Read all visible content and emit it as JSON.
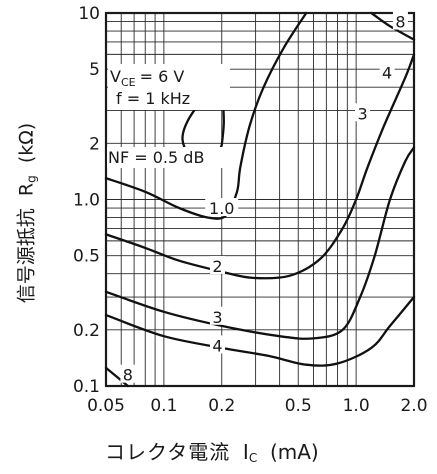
{
  "chart_data": {
    "type": "line",
    "title": "",
    "xlabel": {
      "text": "コレクタ電流",
      "symbol": "I",
      "sub": "C",
      "unit": "(mA)"
    },
    "ylabel": {
      "text": "信号源抵抗",
      "symbol": "R",
      "sub": "g",
      "unit": "(kΩ)"
    },
    "x_scale": "log",
    "y_scale": "log",
    "xlim": [
      0.05,
      2.0
    ],
    "ylim": [
      0.1,
      10
    ],
    "x_ticks": [
      {
        "value": 0.05,
        "label": "0.05"
      },
      {
        "value": 0.1,
        "label": "0.1"
      },
      {
        "value": 0.2,
        "label": "0.2"
      },
      {
        "value": 0.5,
        "label": "0.5"
      },
      {
        "value": 1.0,
        "label": "1.0"
      },
      {
        "value": 2.0,
        "label": "2.0"
      }
    ],
    "y_ticks": [
      {
        "value": 10,
        "label": "10"
      },
      {
        "value": 5,
        "label": "5"
      },
      {
        "value": 2,
        "label": "2"
      },
      {
        "value": 1.0,
        "label": "1.0"
      },
      {
        "value": 0.5,
        "label": "0.5"
      },
      {
        "value": 0.2,
        "label": "0.2"
      },
      {
        "value": 0.1,
        "label": "0.1"
      }
    ],
    "conditions": {
      "vce": {
        "symbol": "V",
        "sub": "CE",
        "value": "= 6 V"
      },
      "freq": "f = 1 kHz",
      "nf_label": "NF = 0.5 dB"
    },
    "grid": true,
    "series": [
      {
        "label": "",
        "closed": true,
        "points": [
          [
            0.2,
            1.95
          ],
          [
            0.185,
            1.7
          ],
          [
            0.16,
            1.62
          ],
          [
            0.135,
            1.75
          ],
          [
            0.125,
            2.1
          ],
          [
            0.132,
            2.6
          ],
          [
            0.155,
            3.3
          ],
          [
            0.18,
            3.6
          ],
          [
            0.2,
            3.4
          ],
          [
            0.205,
            2.6
          ],
          [
            0.2,
            1.95
          ]
        ]
      },
      {
        "label": "1.0",
        "label_at": [
          0.2,
          0.9
        ],
        "points": [
          [
            0.05,
            1.3
          ],
          [
            0.08,
            1.1
          ],
          [
            0.12,
            0.9
          ],
          [
            0.17,
            0.8
          ],
          [
            0.21,
            0.82
          ],
          [
            0.24,
            1.1
          ],
          [
            0.25,
            1.5
          ],
          [
            0.28,
            2.5
          ],
          [
            0.33,
            4.0
          ],
          [
            0.42,
            6.5
          ],
          [
            0.55,
            10
          ]
        ]
      },
      {
        "label": "2",
        "label_at": [
          0.19,
          0.44
        ],
        "points": [
          [
            0.05,
            0.65
          ],
          [
            0.08,
            0.55
          ],
          [
            0.12,
            0.47
          ],
          [
            0.2,
            0.41
          ],
          [
            0.29,
            0.38
          ],
          [
            0.45,
            0.39
          ],
          [
            0.65,
            0.48
          ],
          [
            0.85,
            0.7
          ],
          [
            1.0,
            1.0
          ],
          [
            1.15,
            1.5
          ],
          [
            1.4,
            2.5
          ],
          [
            1.8,
            4.5
          ],
          [
            2.0,
            6.0
          ]
        ]
      },
      {
        "label": "3",
        "label_at": [
          1.08,
          2.9
        ],
        "points": [
          [
            0.05,
            0.32
          ],
          [
            0.1,
            0.25
          ],
          [
            0.2,
            0.21
          ],
          [
            0.4,
            0.185
          ],
          [
            0.6,
            0.18
          ],
          [
            0.85,
            0.2
          ],
          [
            1.05,
            0.3
          ],
          [
            1.25,
            0.5
          ],
          [
            1.5,
            1.0
          ],
          [
            1.8,
            1.6
          ],
          [
            2.0,
            1.9
          ]
        ]
      },
      {
        "label": "4",
        "label_at": [
          1.45,
          4.8
        ],
        "points": [
          [
            0.05,
            0.24
          ],
          [
            0.1,
            0.185
          ],
          [
            0.2,
            0.16
          ],
          [
            0.35,
            0.145
          ],
          [
            0.55,
            0.13
          ],
          [
            0.8,
            0.132
          ],
          [
            1.2,
            0.16
          ],
          [
            1.5,
            0.21
          ],
          [
            2.0,
            0.3
          ]
        ]
      },
      {
        "label": "8",
        "label_at": [
          1.7,
          9.0
        ],
        "points": [
          [
            1.2,
            10
          ],
          [
            1.5,
            8.5
          ],
          [
            2.0,
            7.2
          ]
        ]
      },
      {
        "label": "8",
        "label_at": [
          0.065,
          0.115
        ],
        "points": [
          [
            0.05,
            0.125
          ],
          [
            0.065,
            0.1
          ]
        ]
      }
    ],
    "extra_labels": [
      {
        "text": "3",
        "at": [
          0.19,
          0.235
        ]
      },
      {
        "text": "4",
        "at": [
          0.19,
          0.165
        ]
      }
    ]
  }
}
